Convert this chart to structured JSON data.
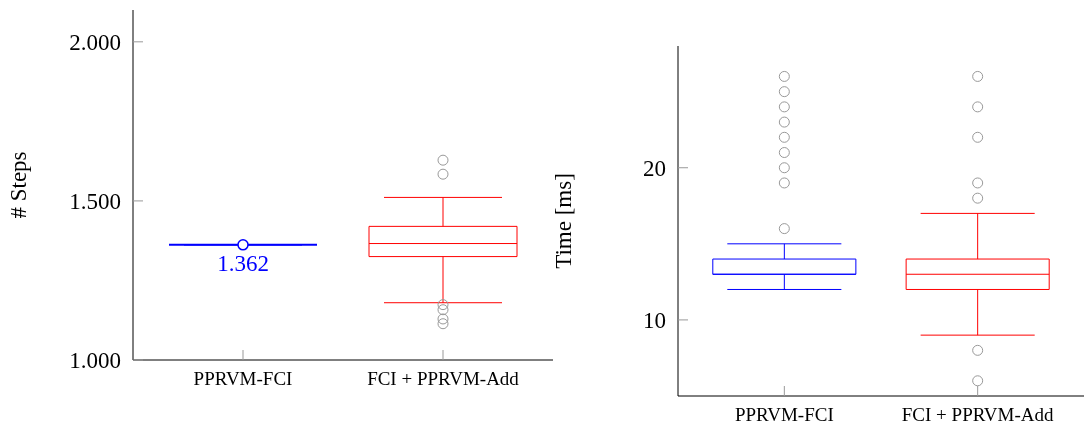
{
  "chart_data": [
    {
      "type": "box",
      "ylabel": "# Steps",
      "categories": [
        "PPRVM-FCI",
        "FCI + PPRVM-Add"
      ],
      "colors": [
        "#0000ff",
        "#ff0000"
      ],
      "ylim": [
        1000,
        2100
      ],
      "yticks": [
        {
          "value": 1000,
          "label": "1.000"
        },
        {
          "value": 1500,
          "label": "1.500"
        },
        {
          "value": 2000,
          "label": "2.000"
        }
      ],
      "grid": false,
      "boxes": [
        {
          "low": 1362,
          "q1": 1362,
          "median": 1362,
          "q3": 1362,
          "high": 1362,
          "mean": 1362
        },
        {
          "low": 1180,
          "q1": 1325,
          "median": 1366,
          "q3": 1420,
          "high": 1511,
          "outliers": [
            1628,
            1584,
            1174,
            1158,
            1129,
            1114
          ]
        }
      ],
      "annotations": [
        {
          "text": "1.362",
          "x": "PPRVM-FCI",
          "y": 1362
        }
      ]
    },
    {
      "type": "box",
      "ylabel": "Time [ms]",
      "categories": [
        "PPRVM-FCI",
        "FCI + PPRVM-Add"
      ],
      "colors": [
        "#0000ff",
        "#ff0000"
      ],
      "ylim": [
        5,
        28
      ],
      "yticks": [
        10,
        20
      ],
      "grid": false,
      "boxes": [
        {
          "low": 12,
          "q1": 13,
          "median": 13,
          "q3": 14,
          "high": 15,
          "outliers": [
            16,
            19,
            20,
            21,
            22,
            23,
            24,
            25,
            26
          ]
        },
        {
          "low": 9,
          "q1": 12,
          "median": 13,
          "q3": 14,
          "high": 17,
          "outliers": [
            6,
            8,
            18,
            19,
            22,
            24,
            26
          ]
        }
      ]
    }
  ]
}
